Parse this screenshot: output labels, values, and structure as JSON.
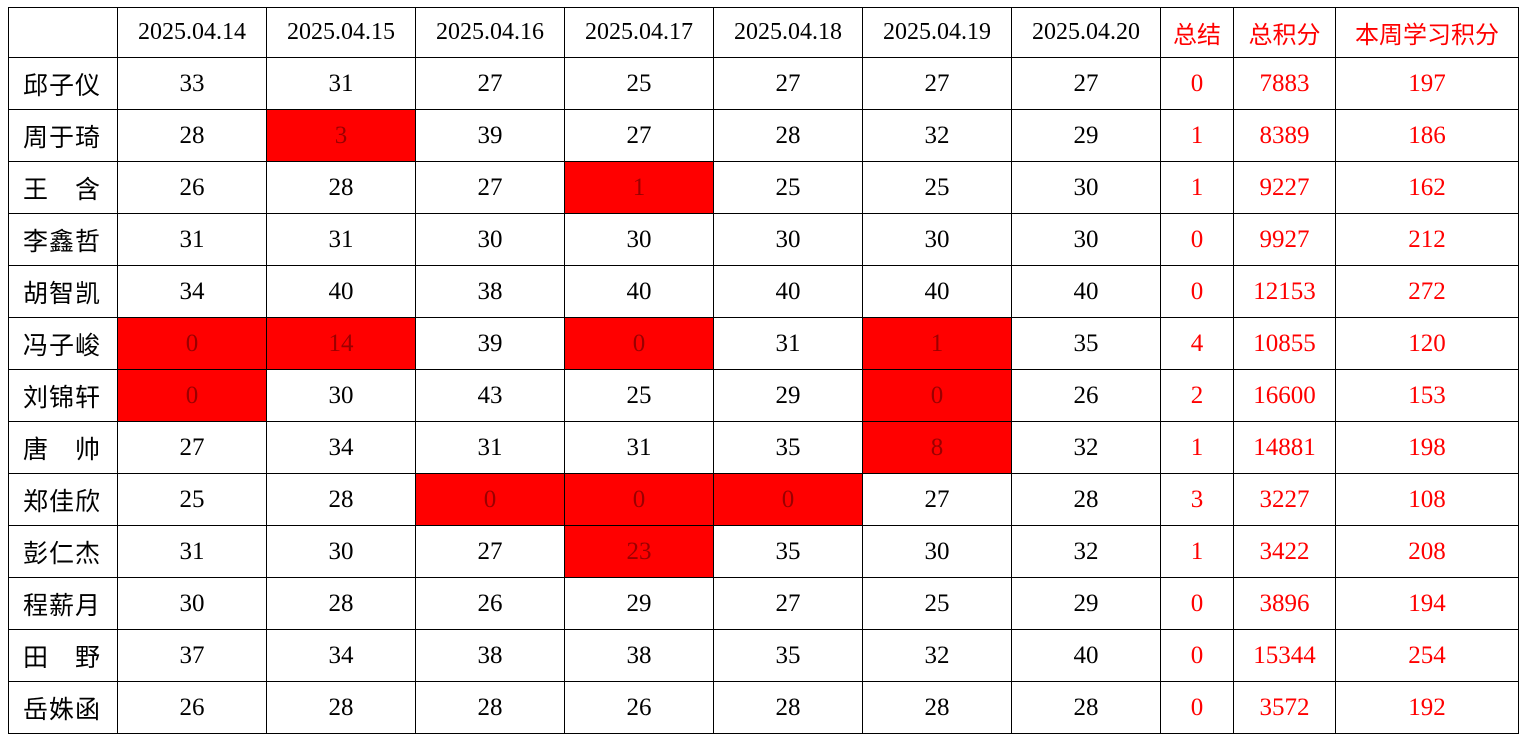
{
  "table": {
    "corner": "",
    "date_headers": [
      "2025.04.14",
      "2025.04.15",
      "2025.04.16",
      "2025.04.17",
      "2025.04.18",
      "2025.04.19",
      "2025.04.20"
    ],
    "summary_headers": [
      "总结",
      "总积分",
      "本周学习积分"
    ],
    "highlight_color": "#ff0000",
    "summary_text_color": "#ff0000",
    "rows": [
      {
        "name": "邱子仪",
        "scores": [
          33,
          31,
          27,
          25,
          27,
          27,
          27
        ],
        "flagged": [],
        "summary": 0,
        "total": 7883,
        "weekly": 197
      },
      {
        "name": "周于琦",
        "scores": [
          28,
          3,
          39,
          27,
          28,
          32,
          29
        ],
        "flagged": [
          1
        ],
        "summary": 1,
        "total": 8389,
        "weekly": 186
      },
      {
        "name": "王　含",
        "scores": [
          26,
          28,
          27,
          1,
          25,
          25,
          30
        ],
        "flagged": [
          3
        ],
        "summary": 1,
        "total": 9227,
        "weekly": 162
      },
      {
        "name": "李鑫哲",
        "scores": [
          31,
          31,
          30,
          30,
          30,
          30,
          30
        ],
        "flagged": [],
        "summary": 0,
        "total": 9927,
        "weekly": 212
      },
      {
        "name": "胡智凯",
        "scores": [
          34,
          40,
          38,
          40,
          40,
          40,
          40
        ],
        "flagged": [],
        "summary": 0,
        "total": 12153,
        "weekly": 272
      },
      {
        "name": "冯子峻",
        "scores": [
          0,
          14,
          39,
          0,
          31,
          1,
          35
        ],
        "flagged": [
          0,
          1,
          3,
          5
        ],
        "summary": 4,
        "total": 10855,
        "weekly": 120
      },
      {
        "name": "刘锦轩",
        "scores": [
          0,
          30,
          43,
          25,
          29,
          0,
          26
        ],
        "flagged": [
          0,
          5
        ],
        "summary": 2,
        "total": 16600,
        "weekly": 153
      },
      {
        "name": "唐　帅",
        "scores": [
          27,
          34,
          31,
          31,
          35,
          8,
          32
        ],
        "flagged": [
          5
        ],
        "summary": 1,
        "total": 14881,
        "weekly": 198
      },
      {
        "name": "郑佳欣",
        "scores": [
          25,
          28,
          0,
          0,
          0,
          27,
          28
        ],
        "flagged": [
          2,
          3,
          4
        ],
        "summary": 3,
        "total": 3227,
        "weekly": 108
      },
      {
        "name": "彭仁杰",
        "scores": [
          31,
          30,
          27,
          23,
          35,
          30,
          32
        ],
        "flagged": [
          3
        ],
        "summary": 1,
        "total": 3422,
        "weekly": 208
      },
      {
        "name": "程薪月",
        "scores": [
          30,
          28,
          26,
          29,
          27,
          25,
          29
        ],
        "flagged": [],
        "summary": 0,
        "total": 3896,
        "weekly": 194
      },
      {
        "name": "田　野",
        "scores": [
          37,
          34,
          38,
          38,
          35,
          32,
          40
        ],
        "flagged": [],
        "summary": 0,
        "total": 15344,
        "weekly": 254
      },
      {
        "name": "岳姝函",
        "scores": [
          26,
          28,
          28,
          26,
          28,
          28,
          28
        ],
        "flagged": [],
        "summary": 0,
        "total": 3572,
        "weekly": 192
      }
    ]
  }
}
